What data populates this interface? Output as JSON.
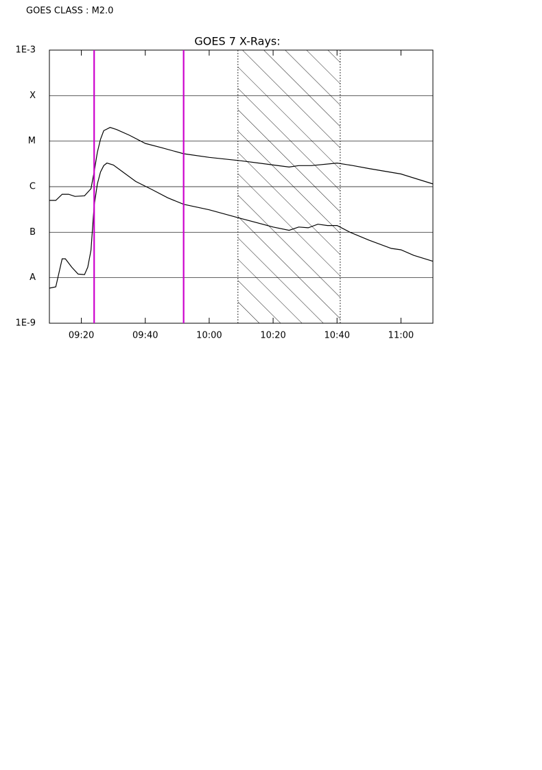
{
  "chart_data": {
    "type": "line",
    "annotation": "GOES CLASS : M2.0",
    "title": "GOES 7 X-Rays:",
    "log_y": true,
    "grid": true,
    "xlim": [
      "09:10",
      "11:10"
    ],
    "xticks": [
      "09:20",
      "09:40",
      "10:00",
      "10:20",
      "10:40",
      "11:00"
    ],
    "ylim": [
      1e-09,
      0.001
    ],
    "yticks": [
      {
        "value": 0.001,
        "label": "1E-3"
      },
      {
        "value": 0.0001,
        "label": "X"
      },
      {
        "value": 1e-05,
        "label": "M"
      },
      {
        "value": 1e-06,
        "label": "C"
      },
      {
        "value": 1e-07,
        "label": "B"
      },
      {
        "value": 1e-08,
        "label": "A"
      },
      {
        "value": 1e-09,
        "label": "1E-9"
      }
    ],
    "series": [
      {
        "color": "#000000",
        "x": [
          "09:10",
          "09:12",
          "09:14",
          "09:16",
          "09:18",
          "09:21",
          "09:23",
          "09:24",
          "09:25",
          "09:26",
          "09:27",
          "09:29",
          "09:31",
          "09:35",
          "09:40",
          "09:45",
          "09:52",
          "10:00",
          "10:10",
          "10:20",
          "10:25",
          "10:28",
          "10:32",
          "10:40",
          "10:45",
          "10:50",
          "11:00",
          "11:10"
        ],
        "values": [
          5e-07,
          5e-07,
          6.8e-07,
          6.8e-07,
          6.1e-07,
          6.3e-07,
          9e-07,
          2.1e-06,
          5.7e-06,
          1.1e-05,
          1.7e-05,
          2e-05,
          1.8e-05,
          1.35e-05,
          8.9e-06,
          7.2e-06,
          5.3e-06,
          4.4e-06,
          3.7e-06,
          3e-06,
          2.7e-06,
          2.9e-06,
          2.9e-06,
          3.3e-06,
          2.9e-06,
          2.5e-06,
          1.9e-06,
          1.15e-06
        ]
      },
      {
        "color": "#000000",
        "x": [
          "09:10",
          "09:12",
          "09:14",
          "09:15",
          "09:17",
          "09:19",
          "09:21",
          "09:22",
          "09:23",
          "09:24",
          "09:25",
          "09:26",
          "09:27",
          "09:28",
          "09:30",
          "09:33",
          "09:37",
          "09:42",
          "09:47",
          "09:52",
          "10:00",
          "10:10",
          "10:20",
          "10:25",
          "10:28",
          "10:31",
          "10:34",
          "10:37",
          "10:40",
          "10:44",
          "10:50",
          "10:57",
          "11:00",
          "11:04",
          "11:10"
        ],
        "values": [
          5.9e-09,
          6.3e-09,
          2.6e-08,
          2.6e-08,
          1.7e-08,
          1.2e-08,
          1.17e-08,
          1.7e-08,
          4e-08,
          3.8e-07,
          1.15e-06,
          2.1e-06,
          2.9e-06,
          3.3e-06,
          3e-06,
          2.1e-06,
          1.3e-06,
          8.7e-07,
          5.7e-07,
          4.1e-07,
          3.1e-07,
          2e-07,
          1.3e-07,
          1.1e-07,
          1.3e-07,
          1.25e-07,
          1.5e-07,
          1.4e-07,
          1.4e-07,
          1e-07,
          6.7e-08,
          4.4e-08,
          4.1e-08,
          3.1e-08,
          2.3e-08
        ]
      }
    ],
    "markers": {
      "color": "#cc00cc",
      "x": [
        "09:24",
        "09:52"
      ]
    },
    "shaded_range": [
      "10:09",
      "10:41"
    ]
  }
}
